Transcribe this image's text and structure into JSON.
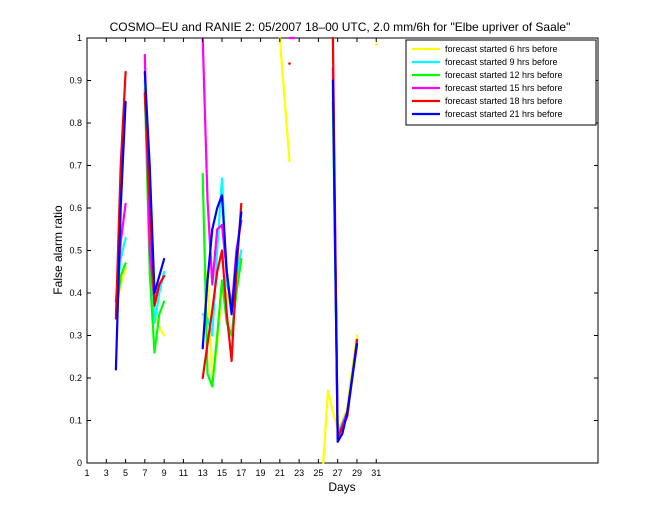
{
  "chart_data": {
    "type": "line",
    "title": "COSMO–EU and RANIE 2: 05/2007 18–00 UTC, 2.0 mm/6h for \"Elbe upriver of Saale\"",
    "xlabel": "Days",
    "ylabel": "False alarm ratio",
    "xlim": [
      1,
      54
    ],
    "ylim": [
      0,
      1
    ],
    "xticks": [
      1,
      3,
      5,
      7,
      9,
      11,
      13,
      15,
      17,
      19,
      21,
      23,
      25,
      27,
      29,
      31
    ],
    "yticks": [
      0,
      0.1,
      0.2,
      0.3,
      0.4,
      0.5,
      0.6,
      0.7,
      0.8,
      0.9,
      1
    ],
    "ytick_labels": [
      "0",
      "0.1",
      "0.2",
      "0.3",
      "0.4",
      "0.5",
      "0.6",
      "0.7",
      "0.8",
      "0.9",
      "1"
    ],
    "grid": false,
    "legend_position": "top-right",
    "series": [
      {
        "name": "forecast started 6 hrs before",
        "color": "#ffff00",
        "segments": [
          [
            [
              4,
              0.36
            ],
            [
              4.5,
              0.42
            ],
            [
              5,
              0.46
            ]
          ],
          [
            [
              7,
              0.85
            ],
            [
              7.5,
              0.65
            ],
            [
              8,
              0.35
            ],
            [
              8.5,
              0.32
            ],
            [
              9,
              0.3
            ]
          ],
          [
            [
              13,
              0.27
            ],
            [
              13.5,
              0.45
            ],
            [
              14,
              0.19
            ],
            [
              14.5,
              0.28
            ],
            [
              15,
              0.41
            ],
            [
              15.5,
              0.4
            ],
            [
              16,
              0.36
            ],
            [
              16.5,
              0.42
            ],
            [
              17,
              0.47
            ]
          ],
          [
            [
              21,
              1.0
            ],
            [
              22,
              0.71
            ]
          ],
          [
            [
              25.5,
              0.0
            ],
            [
              26,
              0.17
            ],
            [
              26.5,
              0.12
            ],
            [
              27,
              0.08
            ],
            [
              27.5,
              0.1
            ],
            [
              28,
              0.13
            ],
            [
              28.5,
              0.22
            ],
            [
              29,
              0.3
            ]
          ]
        ],
        "points": [
          [
            31,
            0.985
          ]
        ]
      },
      {
        "name": "forecast started 9 hrs before",
        "color": "#00ffff",
        "segments": [
          [
            [
              4,
              0.38
            ],
            [
              4.5,
              0.48
            ],
            [
              5,
              0.53
            ]
          ],
          [
            [
              7,
              0.9
            ],
            [
              7.5,
              0.55
            ],
            [
              8,
              0.33
            ],
            [
              8.5,
              0.4
            ],
            [
              9,
              0.45
            ]
          ],
          [
            [
              13,
              0.35
            ],
            [
              13.5,
              0.34
            ],
            [
              14,
              0.3
            ],
            [
              14.5,
              0.5
            ],
            [
              15,
              0.67
            ],
            [
              15.5,
              0.42
            ],
            [
              16,
              0.38
            ],
            [
              16.5,
              0.44
            ],
            [
              17,
              0.5
            ]
          ],
          [
            [
              26.5,
              0.88
            ],
            [
              27,
              0.07
            ],
            [
              28,
              0.12
            ],
            [
              29,
              0.29
            ]
          ]
        ],
        "points": []
      },
      {
        "name": "forecast started 12 hrs before",
        "color": "#00ff00",
        "segments": [
          [
            [
              4,
              0.35
            ],
            [
              4.5,
              0.44
            ],
            [
              5,
              0.47
            ]
          ],
          [
            [
              7,
              0.88
            ],
            [
              7.5,
              0.45
            ],
            [
              8,
              0.26
            ],
            [
              8.5,
              0.35
            ],
            [
              9,
              0.38
            ]
          ],
          [
            [
              13,
              0.68
            ],
            [
              13.5,
              0.21
            ],
            [
              14,
              0.18
            ],
            [
              14.5,
              0.3
            ],
            [
              15,
              0.43
            ],
            [
              15.5,
              0.33
            ],
            [
              16,
              0.3
            ],
            [
              16.5,
              0.4
            ],
            [
              17,
              0.48
            ]
          ],
          [
            [
              26.5,
              0.85
            ],
            [
              27,
              0.06
            ],
            [
              28,
              0.11
            ],
            [
              29,
              0.28
            ]
          ]
        ],
        "points": []
      },
      {
        "name": "forecast started 15 hrs before",
        "color": "#ff00ff",
        "segments": [
          [
            [
              4,
              0.38
            ],
            [
              4.5,
              0.52
            ],
            [
              5,
              0.61
            ]
          ],
          [
            [
              7,
              0.96
            ],
            [
              7.5,
              0.5
            ],
            [
              8,
              0.38
            ],
            [
              8.5,
              0.42
            ],
            [
              9,
              0.44
            ]
          ],
          [
            [
              13,
              1.0
            ],
            [
              13.5,
              0.62
            ],
            [
              14,
              0.42
            ],
            [
              14.5,
              0.55
            ],
            [
              15,
              0.56
            ],
            [
              15.5,
              0.45
            ],
            [
              16,
              0.36
            ],
            [
              16.5,
              0.5
            ],
            [
              17,
              0.57
            ]
          ],
          [
            [
              22,
              1.0
            ],
            [
              22.5,
              1.0
            ]
          ],
          [
            [
              26.5,
              0.93
            ],
            [
              27,
              0.06
            ],
            [
              28,
              0.12
            ],
            [
              29,
              0.28
            ]
          ]
        ],
        "points": []
      },
      {
        "name": "forecast started 18 hrs before",
        "color": "#ff0000",
        "segments": [
          [
            [
              4,
              0.34
            ],
            [
              4.5,
              0.7
            ],
            [
              5,
              0.92
            ]
          ],
          [
            [
              7,
              0.87
            ],
            [
              7.5,
              0.62
            ],
            [
              8,
              0.37
            ],
            [
              8.5,
              0.42
            ],
            [
              9,
              0.44
            ]
          ],
          [
            [
              13,
              0.2
            ],
            [
              13.5,
              0.28
            ],
            [
              14,
              0.36
            ],
            [
              14.5,
              0.45
            ],
            [
              15,
              0.5
            ],
            [
              15.5,
              0.35
            ],
            [
              16,
              0.24
            ],
            [
              16.5,
              0.45
            ],
            [
              17,
              0.61
            ]
          ],
          [
            [
              26.5,
              1.0
            ],
            [
              27,
              0.06
            ],
            [
              28,
              0.11
            ],
            [
              29,
              0.29
            ]
          ]
        ],
        "points": [
          [
            22,
            0.94
          ]
        ]
      },
      {
        "name": "forecast started 21 hrs before",
        "color": "#0000ff",
        "segments": [
          [
            [
              4,
              0.22
            ],
            [
              4.5,
              0.6
            ],
            [
              5,
              0.85
            ]
          ],
          [
            [
              7,
              0.92
            ],
            [
              7.5,
              0.7
            ],
            [
              8,
              0.4
            ],
            [
              8.5,
              0.44
            ],
            [
              9,
              0.48
            ]
          ],
          [
            [
              13,
              0.27
            ],
            [
              13.5,
              0.43
            ],
            [
              14,
              0.55
            ],
            [
              14.5,
              0.6
            ],
            [
              15,
              0.63
            ],
            [
              15.5,
              0.45
            ],
            [
              16,
              0.35
            ],
            [
              16.5,
              0.48
            ],
            [
              17,
              0.59
            ]
          ],
          [
            [
              26.5,
              0.9
            ],
            [
              27,
              0.05
            ],
            [
              27.5,
              0.07
            ],
            [
              28,
              0.12
            ],
            [
              29,
              0.28
            ]
          ]
        ],
        "points": []
      }
    ]
  }
}
